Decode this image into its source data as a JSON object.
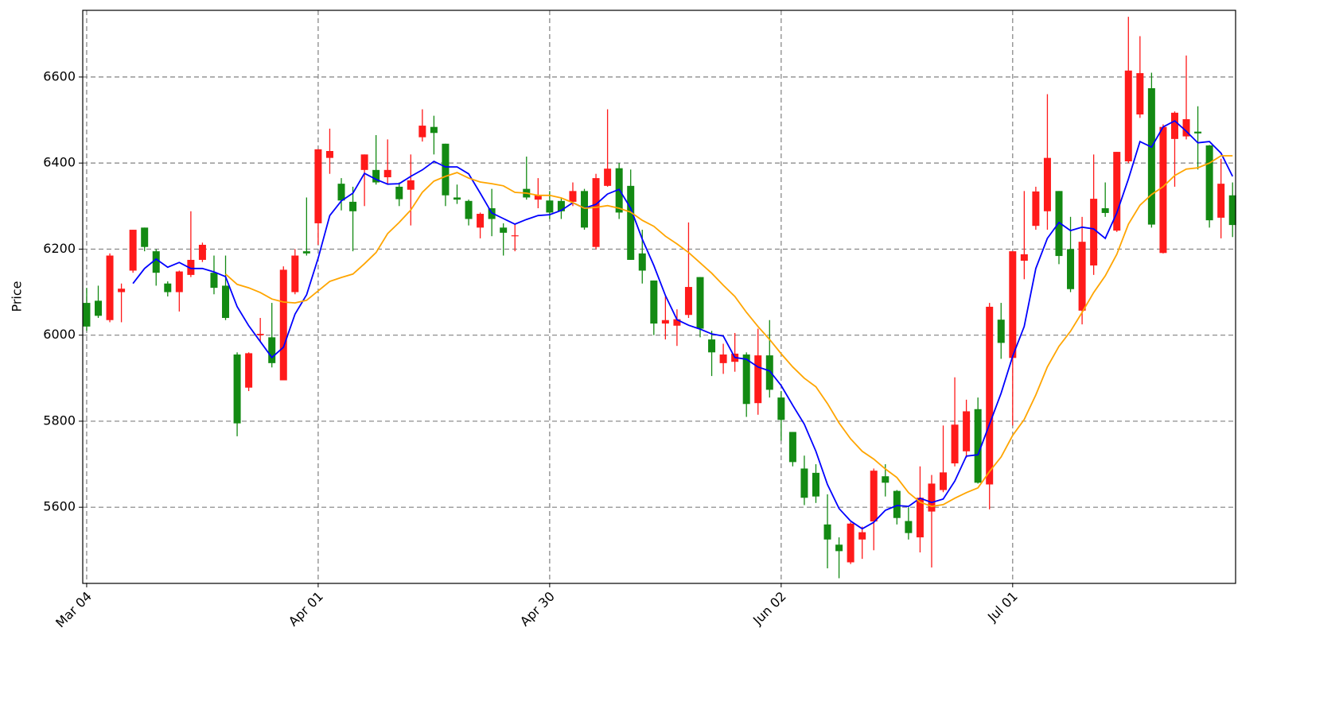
{
  "chart_data": {
    "type": "candlestick",
    "y_label": "Price",
    "xlim": [
      -0.34,
      99.26
    ],
    "xticks": [
      {
        "value": 0,
        "label": "Mar 04"
      },
      {
        "value": 20,
        "label": "Apr 01"
      },
      {
        "value": 40,
        "label": "Apr 30"
      },
      {
        "value": 60,
        "label": "Jun 02"
      },
      {
        "value": 80,
        "label": "Jul 01"
      }
    ],
    "ylim": [
      5423,
      6755
    ],
    "yticks": [
      5600,
      5800,
      6000,
      6200,
      6400,
      6600
    ],
    "grid": true,
    "up_color": "#ff1a1a",
    "down_color": "#138a13",
    "open": [
      6075,
      6080,
      6035,
      6100,
      6150,
      6250,
      6195,
      6120,
      6100,
      6140,
      6175,
      6145,
      6115,
      5955,
      5878,
      6000,
      5995,
      5895,
      6100,
      6195,
      6260,
      6412,
      6352,
      6310,
      6384,
      6384,
      6367,
      6345,
      6338,
      6460,
      6484,
      6445,
      6320,
      6312,
      6250,
      6295,
      6250,
      6230,
      6340,
      6315,
      6313,
      6312,
      6310,
      6335,
      6205,
      6347,
      6388,
      6347,
      6190,
      6127,
      6027,
      6022,
      6047,
      6135,
      5990,
      5935,
      5938,
      5955,
      5842,
      5953,
      5855,
      5775,
      5690,
      5680,
      5560,
      5513,
      5472,
      5525,
      5567,
      5672,
      5638,
      5568,
      5530,
      5590,
      5640,
      5702,
      5730,
      5828,
      5653,
      6036,
      5947,
      6173,
      6254,
      6288,
      6335,
      6200,
      6057,
      6162,
      6295,
      6243,
      6404,
      6513,
      6574,
      6191,
      6456,
      6462,
      6473,
      6441,
      6273,
      6325
    ],
    "high": [
      6110,
      6115,
      6190,
      6120,
      6245,
      6250,
      6200,
      6125,
      6150,
      6288,
      6215,
      6185,
      6185,
      5960,
      5960,
      6040,
      6075,
      6160,
      6200,
      6320,
      6432,
      6480,
      6365,
      6345,
      6420,
      6465,
      6455,
      6355,
      6420,
      6525,
      6510,
      6445,
      6350,
      6315,
      6285,
      6340,
      6260,
      6260,
      6415,
      6365,
      6335,
      6320,
      6355,
      6340,
      6375,
      6525,
      6400,
      6385,
      6245,
      6127,
      6090,
      6060,
      6262,
      6135,
      6010,
      5980,
      6005,
      5960,
      6015,
      6035,
      5870,
      5775,
      5720,
      5700,
      5630,
      5530,
      5565,
      5555,
      5690,
      5700,
      5640,
      5600,
      5695,
      5675,
      5790,
      5902,
      5850,
      5855,
      6075,
      6075,
      6195,
      6335,
      6345,
      6560,
      6335,
      6275,
      6275,
      6420,
      6355,
      6426,
      6740,
      6695,
      6610,
      6490,
      6520,
      6650,
      6532,
      6442,
      6410,
      6355
    ],
    "low": [
      6010,
      6040,
      6030,
      6030,
      6145,
      6195,
      6115,
      6090,
      6055,
      6135,
      6170,
      6095,
      6035,
      5765,
      5870,
      5985,
      5925,
      5895,
      6095,
      6185,
      6210,
      6375,
      6290,
      6195,
      6300,
      6350,
      6350,
      6300,
      6255,
      6450,
      6420,
      6300,
      6305,
      6255,
      6225,
      6230,
      6185,
      6195,
      6315,
      6295,
      6270,
      6270,
      6300,
      6245,
      6200,
      6345,
      6270,
      6175,
      6120,
      6000,
      5990,
      5975,
      6040,
      5995,
      5905,
      5910,
      5915,
      5810,
      5815,
      5855,
      5755,
      5695,
      5605,
      5610,
      5458,
      5435,
      5468,
      5480,
      5500,
      5625,
      5560,
      5525,
      5495,
      5460,
      5635,
      5695,
      5715,
      5655,
      5595,
      5945,
      5790,
      6130,
      6245,
      6245,
      6165,
      6100,
      6025,
      6140,
      6275,
      6240,
      6400,
      6505,
      6250,
      6190,
      6345,
      6455,
      6385,
      6250,
      6225,
      6228
    ],
    "close": [
      6020,
      6045,
      6185,
      6108,
      6245,
      6205,
      6145,
      6100,
      6148,
      6175,
      6210,
      6110,
      6040,
      5795,
      5958,
      6003,
      5935,
      6152,
      6185,
      6190,
      6432,
      6428,
      6313,
      6288,
      6420,
      6355,
      6384,
      6316,
      6360,
      6487,
      6470,
      6325,
      6315,
      6270,
      6282,
      6270,
      6238,
      6232,
      6320,
      6326,
      6285,
      6288,
      6335,
      6250,
      6365,
      6387,
      6285,
      6175,
      6150,
      6027,
      6035,
      6037,
      6112,
      6015,
      5960,
      5955,
      5957,
      5840,
      5953,
      5873,
      5803,
      5705,
      5622,
      5625,
      5525,
      5498,
      5562,
      5542,
      5685,
      5657,
      5575,
      5540,
      5622,
      5655,
      5681,
      5792,
      5823,
      5657,
      6066,
      5982,
      6195,
      6188,
      6334,
      6412,
      6184,
      6107,
      6217,
      6317,
      6284,
      6426,
      6615,
      6609,
      6257,
      6484,
      6517,
      6502,
      6469,
      6267,
      6352,
      6256
    ],
    "lines": [
      {
        "color": "#0000ff",
        "values": [
          null,
          null,
          null,
          null,
          6120,
          6155,
          6177,
          6158,
          6169,
          6155,
          6155,
          6147,
          6136,
          6066,
          6022,
          5985,
          5948,
          5972,
          6049,
          6094,
          6179,
          6278,
          6312,
          6330,
          6376,
          6362,
          6351,
          6352,
          6369,
          6384,
          6404,
          6391,
          6391,
          6375,
          6330,
          6284,
          6271,
          6258,
          6269,
          6278,
          6280,
          6290,
          6308,
          6295,
          6304,
          6328,
          6339,
          6295,
          6223,
          6162,
          6092,
          6036,
          6023,
          6014,
          6003,
          5998,
          5948,
          5944,
          5926,
          5917,
          5883,
          5837,
          5793,
          5730,
          5653,
          5597,
          5568,
          5550,
          5565,
          5593,
          5604,
          5602,
          5621,
          5611,
          5619,
          5661,
          5719,
          5722,
          5793,
          5865,
          5951,
          6020,
          6155,
          6225,
          6262,
          6243,
          6251,
          6247,
          6225,
          6284,
          6363,
          6450,
          6437,
          6484,
          6498,
          6474,
          6447,
          6450,
          6423,
          6369
        ]
      },
      {
        "color": "#ffa500",
        "values": [
          null,
          null,
          null,
          null,
          null,
          null,
          null,
          null,
          null,
          null,
          null,
          null,
          6142,
          6118,
          6110,
          6099,
          6084,
          6077,
          6075,
          6081,
          6103,
          6125,
          6134,
          6142,
          6166,
          6192,
          6236,
          6262,
          6291,
          6332,
          6358,
          6369,
          6378,
          6365,
          6356,
          6352,
          6347,
          6332,
          6330,
          6325,
          6325,
          6319,
          6308,
          6295,
          6297,
          6301,
          6295,
          6286,
          6267,
          6253,
          6230,
          6212,
          6192,
          6168,
          6144,
          6116,
          6090,
          6053,
          6020,
          5990,
          5957,
          5926,
          5900,
          5880,
          5841,
          5796,
          5759,
          5730,
          5712,
          5689,
          5669,
          5634,
          5612,
          5602,
          5606,
          5621,
          5634,
          5645,
          5683,
          5717,
          5767,
          5804,
          5861,
          5926,
          5974,
          6009,
          6053,
          6099,
          6138,
          6188,
          6258,
          6302,
          6327,
          6345,
          6371,
          6386,
          6389,
          6400,
          6417,
          6417
        ]
      }
    ]
  }
}
